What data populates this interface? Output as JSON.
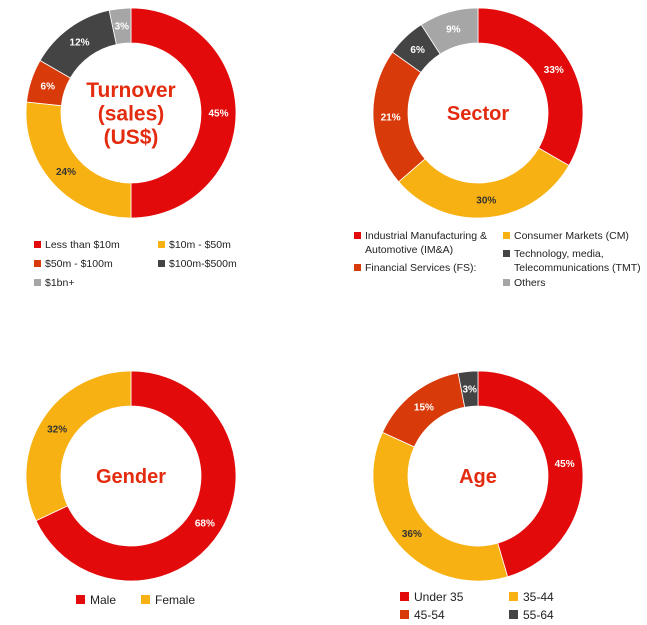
{
  "colors": {
    "red": "#e20a0a",
    "yellow": "#f7b112",
    "dark_orange": "#d93a0a",
    "dark_grey": "#444444",
    "light_grey": "#a6a6a6",
    "title_red": "#e32b0f"
  },
  "chart_data": [
    {
      "type": "pie",
      "title_lines": [
        "Turnover",
        "(sales)",
        "(US$)"
      ],
      "slices": [
        {
          "name": "Less than $10m",
          "value": 45,
          "label": "45%",
          "color": "#e20a0a"
        },
        {
          "name": "$10m - $50m",
          "value": 24,
          "label": "24%",
          "color": "#f7b112"
        },
        {
          "name": "$50m - $100m",
          "value": 6,
          "label": "6%",
          "color": "#d93a0a"
        },
        {
          "name": "$100m-$500m",
          "value": 12,
          "label": "12%",
          "color": "#444444"
        },
        {
          "name": "$1bn+",
          "value": 3,
          "label": "3%",
          "color": "#a6a6a6"
        }
      ],
      "legend": [
        "Less than $10m",
        "$10m - $50m",
        "$50m - $100m",
        "$100m-$500m",
        "$1bn+"
      ]
    },
    {
      "type": "pie",
      "title_lines": [
        "Sector"
      ],
      "slices": [
        {
          "name": "Industrial Manufacturing & Automotive (IM&A)",
          "value": 33,
          "label": "33%",
          "color": "#e20a0a"
        },
        {
          "name": "Consumer Markets (CM)",
          "value": 30,
          "label": "30%",
          "color": "#f7b112"
        },
        {
          "name": "Financial Services (FS):",
          "value": 21,
          "label": "21%",
          "color": "#d93a0a"
        },
        {
          "name": "Technology, media, Telecommunications (TMT)",
          "value": 6,
          "label": "6%",
          "color": "#444444"
        },
        {
          "name": "Others",
          "value": 9,
          "label": "9%",
          "color": "#a6a6a6"
        }
      ],
      "legend": [
        "Industrial Manufacturing &",
        "Automotive (IM&A)",
        "Consumer Markets (CM)",
        "Financial Services (FS):",
        "Technology, media,",
        "Telecommunications (TMT)",
        "Others"
      ]
    },
    {
      "type": "pie",
      "title_lines": [
        "Gender"
      ],
      "slices": [
        {
          "name": "Male",
          "value": 68,
          "label": "68%",
          "color": "#e20a0a"
        },
        {
          "name": "Female",
          "value": 32,
          "label": "32%",
          "color": "#f7b112"
        }
      ],
      "legend": [
        "Male",
        "Female"
      ]
    },
    {
      "type": "pie",
      "title_lines": [
        "Age"
      ],
      "slices": [
        {
          "name": "Under 35",
          "value": 45,
          "label": "45%",
          "color": "#e20a0a"
        },
        {
          "name": "35-44",
          "value": 36,
          "label": "36%",
          "color": "#f7b112"
        },
        {
          "name": "45-54",
          "value": 15,
          "label": "15%",
          "color": "#d93a0a"
        },
        {
          "name": "55-64",
          "value": 3,
          "label": "3%",
          "color": "#444444"
        }
      ],
      "legend": [
        "Under 35",
        "35-44",
        "45-54",
        "55-64"
      ]
    }
  ]
}
